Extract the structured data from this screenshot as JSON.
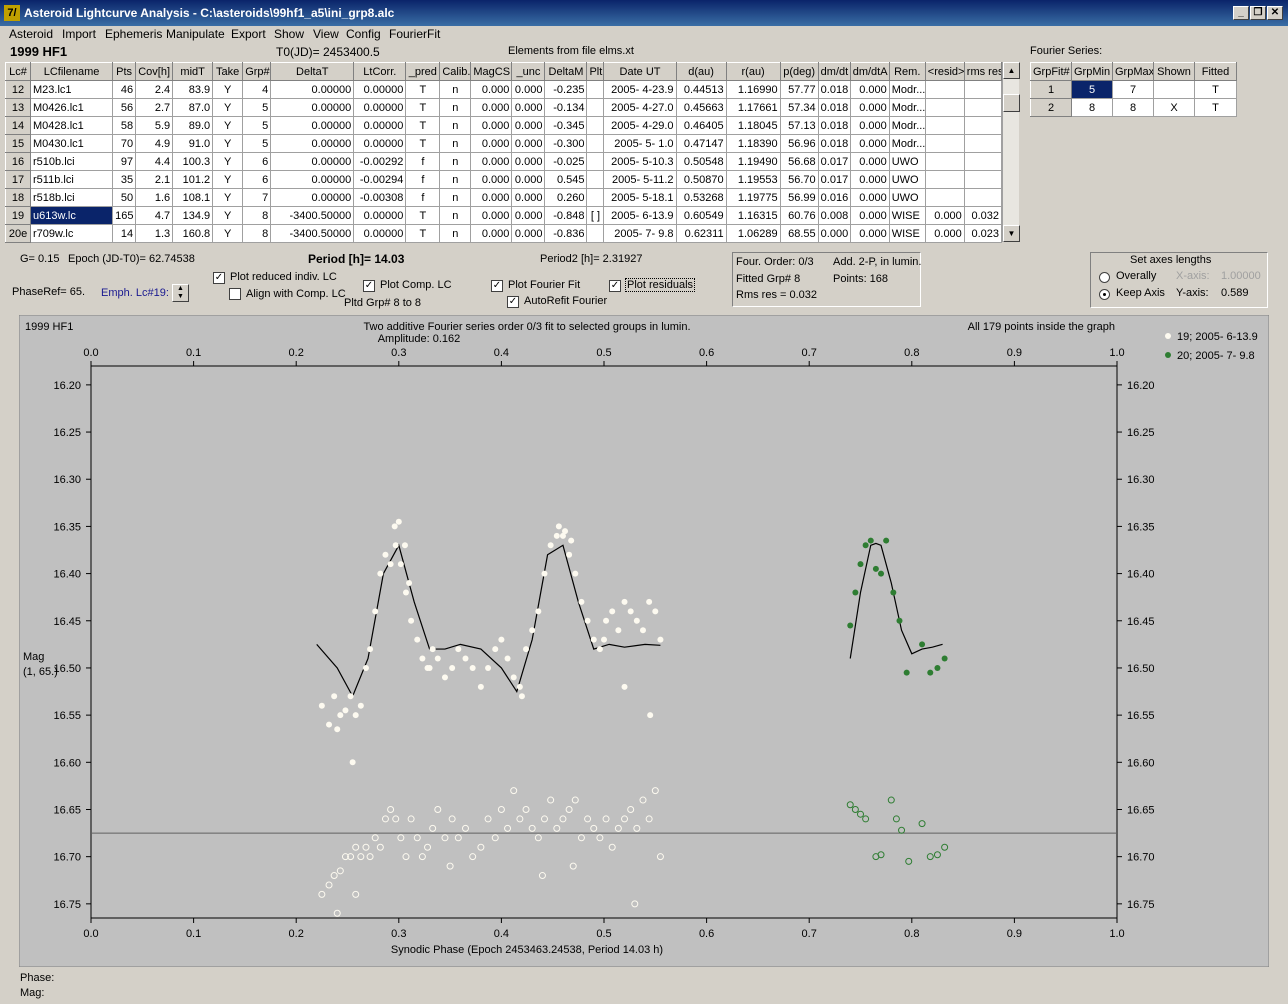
{
  "window": {
    "title": "Asteroid Lightcurve Analysis - C:\\asteroids\\99hf1_a5\\ini_grp8.alc",
    "icon_text": "7/"
  },
  "menu": [
    "Asteroid",
    "Import",
    "Ephemeris",
    "Manipulate",
    "Export",
    "Show",
    "View",
    "Config",
    "FourierFit"
  ],
  "header": {
    "asteroid": "1999 HF1",
    "t0": "T0(JD)= 2453400.5",
    "elements": "Elements from file elms.xt",
    "fourier_label": "Fourier Series:"
  },
  "lc_table": {
    "columns": [
      "Lc#",
      "LCfilename",
      "Pts",
      "Cov[h]",
      "midT",
      "Take",
      "Grp#",
      "DeltaT",
      "LtCorr.",
      "_pred",
      "Calib.",
      "MagCS",
      "_unc",
      "DeltaM",
      "Plt",
      "Date UT",
      "d(au)",
      "r(au)",
      "p(deg)",
      "dm/dt",
      "dm/dtA",
      "Rem.",
      "<resid>",
      "rms res"
    ],
    "rows": [
      [
        "12",
        "M23.lc1",
        "46",
        "2.4",
        "83.9",
        "Y",
        "4",
        "0.00000",
        "0.00000",
        "T",
        "n",
        "0.000",
        "0.000",
        "-0.235",
        "",
        "2005- 4-23.9",
        "0.44513",
        "1.16990",
        "57.77",
        "0.018",
        "0.000",
        "Modr...",
        "",
        ""
      ],
      [
        "13",
        "M0426.lc1",
        "56",
        "2.7",
        "87.0",
        "Y",
        "5",
        "0.00000",
        "0.00000",
        "T",
        "n",
        "0.000",
        "0.000",
        "-0.134",
        "",
        "2005- 4-27.0",
        "0.45663",
        "1.17661",
        "57.34",
        "0.018",
        "0.000",
        "Modr...",
        "",
        ""
      ],
      [
        "14",
        "M0428.lc1",
        "58",
        "5.9",
        "89.0",
        "Y",
        "5",
        "0.00000",
        "0.00000",
        "T",
        "n",
        "0.000",
        "0.000",
        "-0.345",
        "",
        "2005- 4-29.0",
        "0.46405",
        "1.18045",
        "57.13",
        "0.018",
        "0.000",
        "Modr...",
        "",
        ""
      ],
      [
        "15",
        "M0430.lc1",
        "70",
        "4.9",
        "91.0",
        "Y",
        "5",
        "0.00000",
        "0.00000",
        "T",
        "n",
        "0.000",
        "0.000",
        "-0.300",
        "",
        "2005- 5- 1.0",
        "0.47147",
        "1.18390",
        "56.96",
        "0.018",
        "0.000",
        "Modr...",
        "",
        ""
      ],
      [
        "16",
        "r510b.lci",
        "97",
        "4.4",
        "100.3",
        "Y",
        "6",
        "0.00000",
        "-0.00292",
        "f",
        "n",
        "0.000",
        "0.000",
        "-0.025",
        "",
        "2005- 5-10.3",
        "0.50548",
        "1.19490",
        "56.68",
        "0.017",
        "0.000",
        "UWO",
        "",
        ""
      ],
      [
        "17",
        "r511b.lci",
        "35",
        "2.1",
        "101.2",
        "Y",
        "6",
        "0.00000",
        "-0.00294",
        "f",
        "n",
        "0.000",
        "0.000",
        "0.545",
        "",
        "2005- 5-11.2",
        "0.50870",
        "1.19553",
        "56.70",
        "0.017",
        "0.000",
        "UWO",
        "",
        ""
      ],
      [
        "18",
        "r518b.lci",
        "50",
        "1.6",
        "108.1",
        "Y",
        "7",
        "0.00000",
        "-0.00308",
        "f",
        "n",
        "0.000",
        "0.000",
        "0.260",
        "",
        "2005- 5-18.1",
        "0.53268",
        "1.19775",
        "56.99",
        "0.016",
        "0.000",
        "UWO",
        "",
        ""
      ],
      [
        "19",
        "u613w.lc",
        "165",
        "4.7",
        "134.9",
        "Y",
        "8",
        "-3400.50000",
        "0.00000",
        "T",
        "n",
        "0.000",
        "0.000",
        "-0.848",
        "[ ]",
        "2005- 6-13.9",
        "0.60549",
        "1.16315",
        "60.76",
        "0.008",
        "0.000",
        "WISE",
        "0.000",
        "0.032"
      ],
      [
        "20e",
        "r709w.lc",
        "14",
        "1.3",
        "160.8",
        "Y",
        "8",
        "-3400.50000",
        "0.00000",
        "T",
        "n",
        "0.000",
        "0.000",
        "-0.836",
        "",
        "2005- 7- 9.8",
        "0.62311",
        "1.06289",
        "68.55",
        "0.000",
        "0.000",
        "WISE",
        "0.000",
        "0.023"
      ]
    ]
  },
  "fourier_table": {
    "columns": [
      "GrpFit#",
      "GrpMin",
      "GrpMax",
      "Shown",
      "Fitted"
    ],
    "rows": [
      [
        "1",
        "5",
        "7",
        "",
        "T"
      ],
      [
        "2",
        "8",
        "8",
        "X",
        "T"
      ]
    ]
  },
  "controls": {
    "g": "G= 0.15",
    "epoch": "Epoch (JD-T0)= 62.74538",
    "period": "Period [h]= 14.03",
    "period2": "Period2 [h]= 2.31927",
    "phaseref": "PhaseRef= 65.",
    "emph": "Emph. Lc#19:",
    "cb_reduced": "Plot reduced indiv. LC",
    "cb_align": "Align with Comp. LC",
    "cb_comp": "Plot Comp. LC",
    "pltd": "Pltd Grp#  8   to    8",
    "cb_fourier": "Plot Fourier Fit",
    "cb_autorefit": "AutoRefit Fourier",
    "cb_residuals": "Plot residuals",
    "info1": "Four. Order:  0/3",
    "info2": "Add. 2-P, in lumin.",
    "info3": "Fitted Grp# 8",
    "info4": "Points: 168",
    "info5": "Rms res     = 0.032",
    "axes_title": "Set axes lengths",
    "overally": "Overally",
    "keep_axis": "Keep Axis",
    "xaxis_label": "X-axis:",
    "xaxis_val": "1.00000",
    "yaxis_label": "Y-axis:",
    "yaxis_val": "0.589"
  },
  "bottom": {
    "phase": "Phase:",
    "mag": "Mag:"
  },
  "chart_data": {
    "type": "scatter",
    "asteroid": "1999 HF1",
    "title": "Two additive Fourier series order 0/3 fit to selected groups in lumin.",
    "subtitle": "Amplitude: 0.162",
    "note": "All 179 points inside the graph",
    "xlabel": "Synodic Phase (Epoch 2453463.24538, Period 14.03 h)",
    "ylabel": "Mag",
    "ylabel2": "(1, 65.)",
    "xlim": [
      0.0,
      1.0
    ],
    "ylim": [
      16.18,
      16.765
    ],
    "y_inverted": true,
    "xticks": [
      "0.0",
      "0.1",
      "0.2",
      "0.3",
      "0.4",
      "0.5",
      "0.6",
      "0.7",
      "0.8",
      "0.9",
      "1.0"
    ],
    "yticks": [
      "16.20",
      "16.25",
      "16.30",
      "16.35",
      "16.40",
      "16.45",
      "16.50",
      "16.55",
      "16.60",
      "16.65",
      "16.70",
      "16.75"
    ],
    "residual_line": 16.675,
    "legend_position": "top-right",
    "colors": {
      "plot_bg": "#c0c0c0",
      "series19": "#fdfaf0",
      "series20": "#2e7d32",
      "fit": "#000000"
    },
    "series": [
      {
        "name": "19; 2005- 6-13.9",
        "x": [
          0.225,
          0.232,
          0.237,
          0.243,
          0.248,
          0.253,
          0.258,
          0.263,
          0.268,
          0.272,
          0.277,
          0.282,
          0.287,
          0.292,
          0.297,
          0.302,
          0.307,
          0.312,
          0.318,
          0.323,
          0.328,
          0.333,
          0.338,
          0.345,
          0.352,
          0.358,
          0.365,
          0.372,
          0.38,
          0.387,
          0.394,
          0.4,
          0.406,
          0.412,
          0.418,
          0.424,
          0.43,
          0.436,
          0.442,
          0.448,
          0.454,
          0.46,
          0.466,
          0.472,
          0.478,
          0.484,
          0.49,
          0.496,
          0.502,
          0.508,
          0.514,
          0.52,
          0.526,
          0.532,
          0.538,
          0.544,
          0.55,
          0.555,
          0.296,
          0.3,
          0.306,
          0.456,
          0.462,
          0.468,
          0.24,
          0.255,
          0.31,
          0.33,
          0.42,
          0.5,
          0.52,
          0.545
        ],
        "y": [
          16.54,
          16.56,
          16.53,
          16.55,
          16.545,
          16.53,
          16.55,
          16.54,
          16.5,
          16.48,
          16.44,
          16.4,
          16.38,
          16.39,
          16.37,
          16.39,
          16.42,
          16.45,
          16.47,
          16.49,
          16.5,
          16.48,
          16.49,
          16.51,
          16.5,
          16.48,
          16.49,
          16.5,
          16.52,
          16.5,
          16.48,
          16.47,
          16.49,
          16.51,
          16.52,
          16.48,
          16.46,
          16.44,
          16.4,
          16.37,
          16.36,
          16.36,
          16.38,
          16.4,
          16.43,
          16.45,
          16.47,
          16.48,
          16.45,
          16.44,
          16.46,
          16.43,
          16.44,
          16.45,
          16.46,
          16.43,
          16.44,
          16.47,
          16.35,
          16.345,
          16.37,
          16.35,
          16.355,
          16.365,
          16.565,
          16.6,
          16.41,
          16.5,
          16.53,
          16.47,
          16.52,
          16.55
        ]
      },
      {
        "name": "20; 2005- 7- 9.8",
        "x": [
          0.74,
          0.745,
          0.75,
          0.755,
          0.76,
          0.765,
          0.77,
          0.775,
          0.782,
          0.788,
          0.795,
          0.81,
          0.818,
          0.825,
          0.832
        ],
        "y": [
          16.455,
          16.42,
          16.39,
          16.37,
          16.365,
          16.395,
          16.4,
          16.365,
          16.42,
          16.45,
          16.505,
          16.475,
          16.505,
          16.5,
          16.49
        ]
      }
    ],
    "residuals": [
      {
        "name": "19; 2005- 6-13.9",
        "x": [
          0.225,
          0.232,
          0.237,
          0.243,
          0.248,
          0.253,
          0.258,
          0.263,
          0.268,
          0.272,
          0.277,
          0.282,
          0.287,
          0.292,
          0.297,
          0.302,
          0.307,
          0.312,
          0.318,
          0.323,
          0.328,
          0.333,
          0.338,
          0.345,
          0.352,
          0.358,
          0.365,
          0.372,
          0.38,
          0.387,
          0.394,
          0.4,
          0.406,
          0.412,
          0.418,
          0.424,
          0.43,
          0.436,
          0.442,
          0.448,
          0.454,
          0.46,
          0.466,
          0.472,
          0.478,
          0.484,
          0.49,
          0.496,
          0.502,
          0.508,
          0.514,
          0.52,
          0.526,
          0.532,
          0.538,
          0.544,
          0.55,
          0.555,
          0.24,
          0.258,
          0.35,
          0.44,
          0.47,
          0.53
        ],
        "y": [
          16.74,
          16.73,
          16.72,
          16.715,
          16.7,
          16.7,
          16.69,
          16.7,
          16.69,
          16.7,
          16.68,
          16.69,
          16.66,
          16.65,
          16.66,
          16.68,
          16.7,
          16.66,
          16.68,
          16.7,
          16.69,
          16.67,
          16.65,
          16.68,
          16.66,
          16.68,
          16.67,
          16.7,
          16.69,
          16.66,
          16.68,
          16.65,
          16.67,
          16.63,
          16.66,
          16.65,
          16.67,
          16.68,
          16.66,
          16.64,
          16.67,
          16.66,
          16.65,
          16.64,
          16.68,
          16.66,
          16.67,
          16.68,
          16.66,
          16.69,
          16.67,
          16.66,
          16.65,
          16.67,
          16.64,
          16.66,
          16.63,
          16.7,
          16.76,
          16.74,
          16.71,
          16.72,
          16.71,
          16.75
        ]
      },
      {
        "name": "20; 2005- 7- 9.8",
        "x": [
          0.74,
          0.745,
          0.75,
          0.755,
          0.765,
          0.77,
          0.78,
          0.785,
          0.79,
          0.797,
          0.81,
          0.818,
          0.825,
          0.832
        ],
        "y": [
          16.645,
          16.65,
          16.655,
          16.66,
          16.7,
          16.698,
          16.64,
          16.66,
          16.672,
          16.705,
          16.665,
          16.7,
          16.698,
          16.69
        ]
      }
    ],
    "fit_curves": [
      {
        "x": [
          0.22,
          0.24,
          0.255,
          0.27,
          0.285,
          0.3,
          0.315,
          0.33,
          0.345,
          0.36,
          0.38,
          0.4,
          0.415,
          0.43,
          0.445,
          0.46,
          0.475,
          0.49,
          0.505,
          0.52,
          0.54,
          0.555
        ],
        "y": [
          16.475,
          16.5,
          16.53,
          16.49,
          16.4,
          16.37,
          16.43,
          16.48,
          16.48,
          16.475,
          16.48,
          16.5,
          16.525,
          16.47,
          16.38,
          16.37,
          16.43,
          16.48,
          16.475,
          16.478,
          16.475,
          16.476
        ]
      },
      {
        "x": [
          0.74,
          0.75,
          0.76,
          0.765,
          0.77,
          0.78,
          0.79,
          0.8,
          0.81,
          0.82,
          0.83
        ],
        "y": [
          16.49,
          16.42,
          16.37,
          16.368,
          16.37,
          16.41,
          16.46,
          16.485,
          16.48,
          16.478,
          16.475
        ]
      }
    ]
  }
}
